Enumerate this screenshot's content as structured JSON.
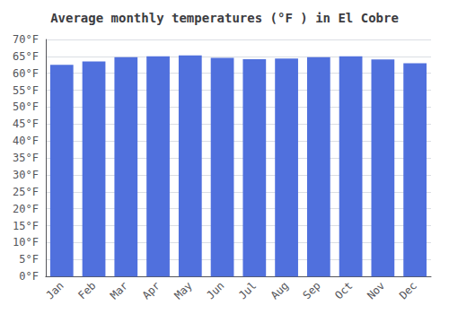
{
  "chart_data": {
    "type": "bar",
    "title": "Average monthly temperatures (°F ) in El Cobre",
    "categories": [
      "Jan",
      "Feb",
      "Mar",
      "Apr",
      "May",
      "Jun",
      "Jul",
      "Aug",
      "Sep",
      "Oct",
      "Nov",
      "Dec"
    ],
    "values": [
      62.5,
      63.5,
      64.8,
      65.0,
      65.3,
      64.6,
      64.2,
      64.4,
      64.8,
      65.0,
      64.1,
      63.0
    ],
    "ylim": [
      0,
      70
    ],
    "yticks": [
      {
        "value": 0,
        "label": "0°F"
      },
      {
        "value": 5,
        "label": "5°F"
      },
      {
        "value": 10,
        "label": "10°F"
      },
      {
        "value": 15,
        "label": "15°F"
      },
      {
        "value": 20,
        "label": "20°F"
      },
      {
        "value": 25,
        "label": "25°F"
      },
      {
        "value": 30,
        "label": "30°F"
      },
      {
        "value": 35,
        "label": "35°F"
      },
      {
        "value": 40,
        "label": "40°F"
      },
      {
        "value": 45,
        "label": "45°F"
      },
      {
        "value": 50,
        "label": "50°F"
      },
      {
        "value": 55,
        "label": "55°F"
      },
      {
        "value": 60,
        "label": "60°F"
      },
      {
        "value": 65,
        "label": "65°F"
      },
      {
        "value": 70,
        "label": "70°F"
      }
    ],
    "grid": true
  }
}
